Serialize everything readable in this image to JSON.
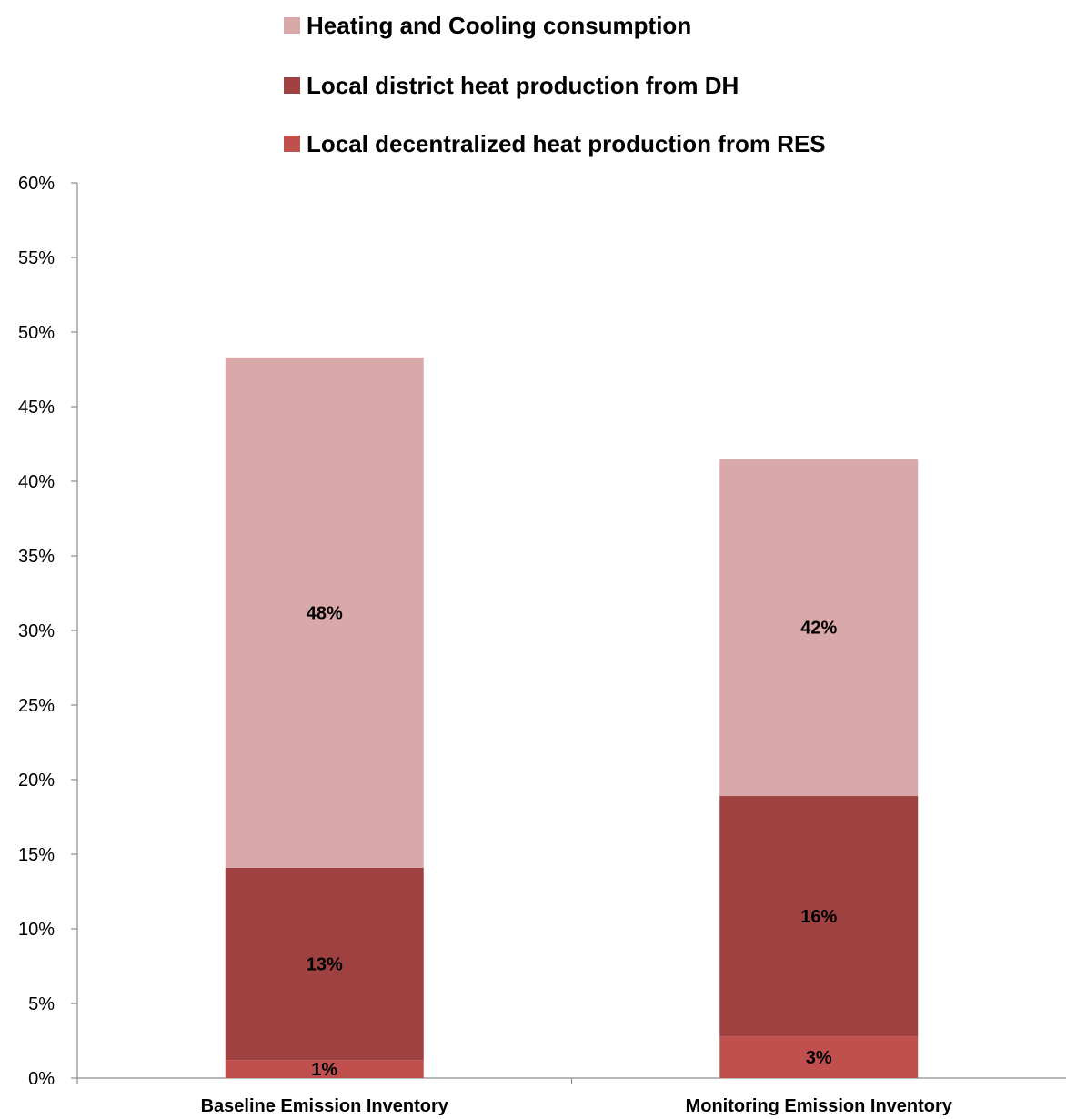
{
  "chart_data": {
    "type": "bar",
    "stacked": true,
    "categories": [
      "Baseline Emission Inventory",
      "Monitoring Emission Inventory"
    ],
    "series": [
      {
        "name": "Local decentralized heat production from RES",
        "color": "#c0504d",
        "values": [
          1.2,
          2.8
        ],
        "labels": [
          "1%",
          "3%"
        ]
      },
      {
        "name": "Local district heat production from DH",
        "color": "#9e4140",
        "values": [
          12.9,
          16.1
        ],
        "labels": [
          "13%",
          "16%"
        ]
      },
      {
        "name": "Heating and Cooling consumption",
        "color": "#d9a9a9",
        "values": [
          34.2,
          22.6
        ],
        "labels": [
          "48%",
          "42%"
        ]
      }
    ],
    "legend_order": [
      "Heating and Cooling consumption",
      "Local district heat production from DH",
      "Local decentralized heat production from RES"
    ],
    "legend_position": "top",
    "ylim": [
      0,
      60
    ],
    "y_ticks": [
      0,
      5,
      10,
      15,
      20,
      25,
      30,
      35,
      40,
      45,
      50,
      55,
      60
    ],
    "y_tick_labels": [
      "0%",
      "5%",
      "10%",
      "15%",
      "20%",
      "25%",
      "30%",
      "35%",
      "40%",
      "45%",
      "50%",
      "55%",
      "60%"
    ],
    "grid": false,
    "title": "",
    "xlabel": "",
    "ylabel": ""
  }
}
